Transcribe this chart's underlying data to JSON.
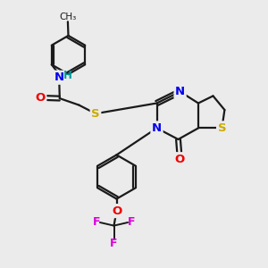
{
  "background_color": "#ebebeb",
  "bond_color": "#1a1a1a",
  "atom_colors": {
    "N": "#0000ee",
    "O": "#ee0000",
    "S": "#ccaa00",
    "F": "#dd00dd",
    "H": "#009999",
    "C": "#1a1a1a"
  },
  "figsize": [
    3.0,
    3.0
  ],
  "dpi": 100
}
